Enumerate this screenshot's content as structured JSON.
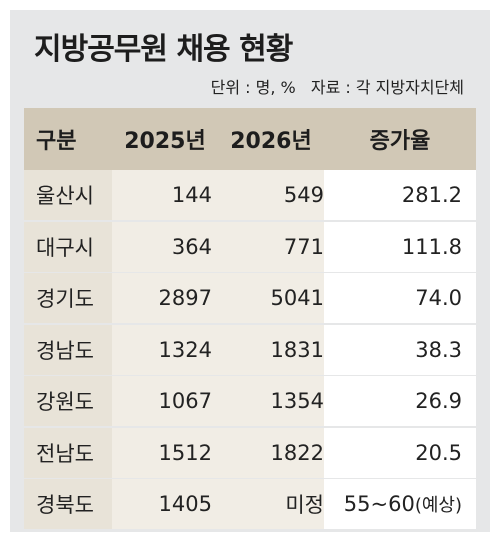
{
  "chart_data": {
    "type": "table",
    "title": "지방공무원 채용 현황",
    "unit": "단위 : 명, %",
    "source": "자료 : 각 지방자치단체",
    "columns": [
      "구분",
      "2025년",
      "2026년",
      "증가율"
    ],
    "rows": [
      {
        "region": "울산시",
        "y2025": "144",
        "y2026": "549",
        "rate": "281.2"
      },
      {
        "region": "대구시",
        "y2025": "364",
        "y2026": "771",
        "rate": "111.8"
      },
      {
        "region": "경기도",
        "y2025": "2897",
        "y2026": "5041",
        "rate": "74.0"
      },
      {
        "region": "경남도",
        "y2025": "1324",
        "y2026": "1831",
        "rate": "38.3"
      },
      {
        "region": "강원도",
        "y2025": "1067",
        "y2026": "1354",
        "rate": "26.9"
      },
      {
        "region": "전남도",
        "y2025": "1512",
        "y2026": "1822",
        "rate": "20.5"
      },
      {
        "region": "경북도",
        "y2025": "1405",
        "y2026": "미정",
        "rate": "55~60",
        "rate_note": "(예상)"
      }
    ]
  }
}
